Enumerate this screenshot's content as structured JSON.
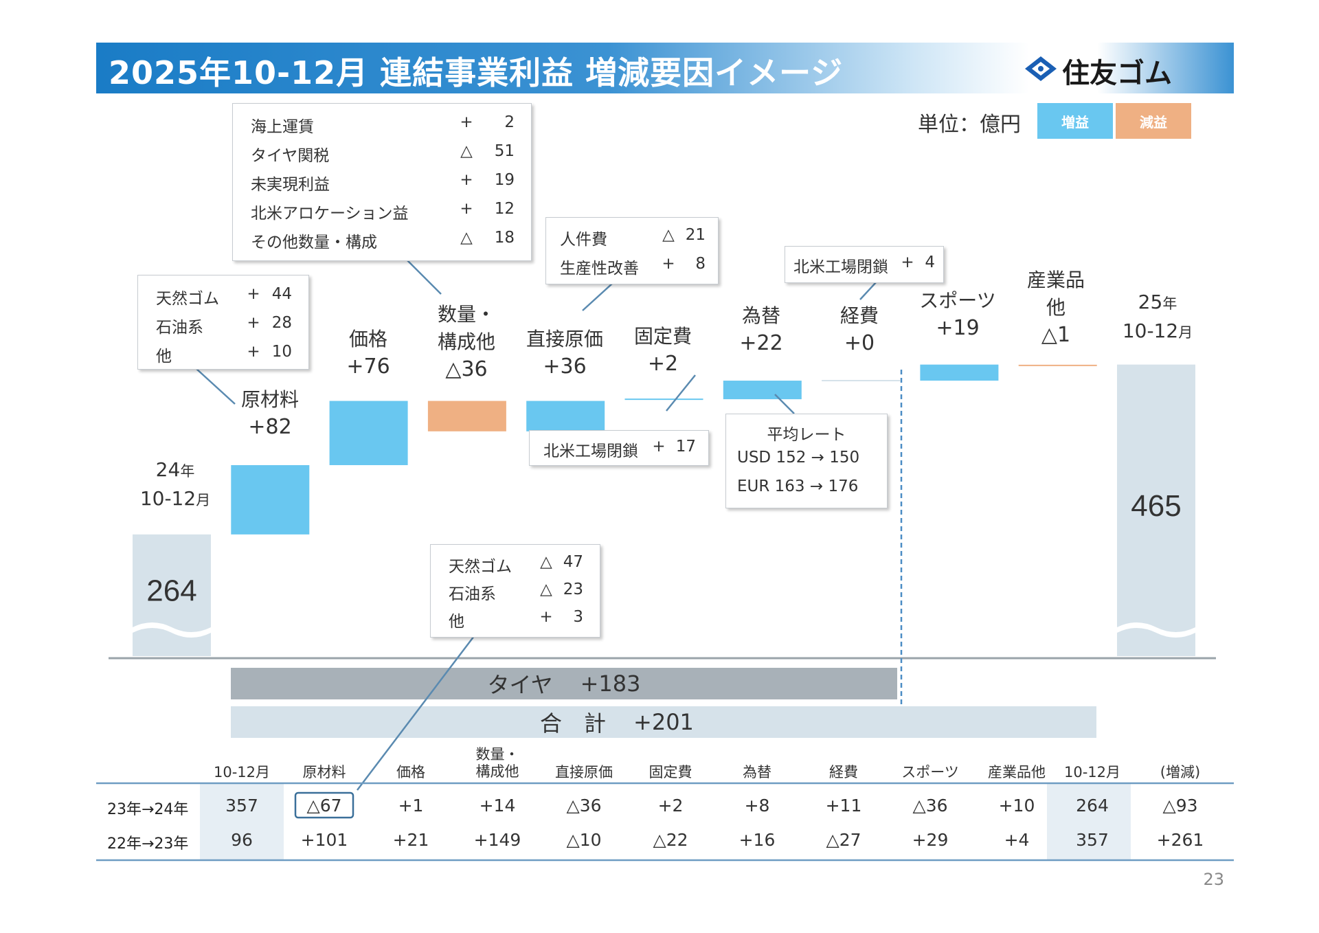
{
  "title": "2025年10-12月 連結事業利益 増減要因イメージ",
  "logo": "住友ゴム",
  "unit": "単位：億円",
  "legend": {
    "increase": "増益",
    "decrease": "減益"
  },
  "colors": {
    "increase": "#69c7f0",
    "decrease": "#efb083",
    "base": "#d6e2ea",
    "tire_band": "#a8b1b8",
    "total_band": "#d6e2ea",
    "accent": "#1a7cc6"
  },
  "chart_data": {
    "type": "bar",
    "subtype": "waterfall",
    "categories": [
      "24年10-12月",
      "原材料",
      "価格",
      "数量・構成他",
      "直接原価",
      "固定費",
      "為替",
      "経費",
      "スポーツ",
      "産業品他",
      "25年10-12月"
    ],
    "values": [
      264,
      82,
      76,
      -36,
      36,
      2,
      22,
      0,
      19,
      -1,
      465
    ],
    "bar_kind": [
      "base",
      "delta",
      "delta",
      "delta",
      "delta",
      "delta",
      "delta",
      "delta",
      "delta",
      "delta",
      "base"
    ],
    "start_label": {
      "year": "24",
      "year_suffix": "年",
      "period": "10-12",
      "period_suffix": "月",
      "value": "264"
    },
    "end_label": {
      "year": "25",
      "year_suffix": "年",
      "period": "10-12",
      "period_suffix": "月",
      "value": "465"
    },
    "bar_labels": [
      {
        "name": "原材料",
        "value": "+82"
      },
      {
        "name": "価格",
        "value": "+76"
      },
      {
        "name": "数量・",
        "name2": "構成他",
        "value": "△36"
      },
      {
        "name": "直接原価",
        "value": "+36"
      },
      {
        "name": "固定費",
        "value": "+2"
      },
      {
        "name": "為替",
        "value": "+22"
      },
      {
        "name": "経費",
        "value": "+0"
      },
      {
        "name": "スポーツ",
        "value": "+19"
      },
      {
        "name": "産業品",
        "name2": "他",
        "value": "△1"
      }
    ],
    "bands": {
      "tire": {
        "label": "タイヤ",
        "value": "+183"
      },
      "total": {
        "label": "合　計",
        "value": "+201"
      }
    },
    "annotations": {
      "raw_material_up": [
        {
          "label": "天然ゴム",
          "sign": "+",
          "value": "44"
        },
        {
          "label": "石油系",
          "sign": "+",
          "value": "28"
        },
        {
          "label": "他",
          "sign": "+",
          "value": "10"
        }
      ],
      "volume_mix": [
        {
          "label": "海上運賃",
          "sign": "+",
          "value": "2"
        },
        {
          "label": "タイヤ関税",
          "sign": "△",
          "value": "51"
        },
        {
          "label": "未実現利益",
          "sign": "+",
          "value": "19"
        },
        {
          "label": "北米アロケーション益",
          "sign": "+",
          "value": "12"
        },
        {
          "label": "その他数量・構成",
          "sign": "△",
          "value": "18"
        }
      ],
      "direct_cost": [
        {
          "label": "人件費",
          "sign": "△",
          "value": "21"
        },
        {
          "label": "生産性改善",
          "sign": "+",
          "value": "8"
        }
      ],
      "fixed_cost": {
        "label": "北米工場閉鎖",
        "sign": "+",
        "value": "17"
      },
      "expenses": {
        "label": "北米工場閉鎖",
        "sign": "+",
        "value": "4"
      },
      "fx": {
        "title": "平均レート",
        "rows": [
          {
            "ccy": "USD",
            "from": "152",
            "arrow": "→",
            "to": "150"
          },
          {
            "ccy": "EUR",
            "from": "163",
            "arrow": "→",
            "to": "176"
          }
        ]
      },
      "raw_material_prev": [
        {
          "label": "天然ゴム",
          "sign": "△",
          "value": "47"
        },
        {
          "label": "石油系",
          "sign": "△",
          "value": "23"
        },
        {
          "label": "他",
          "sign": "+",
          "value": "3"
        }
      ]
    }
  },
  "table": {
    "headers": [
      "10-12月",
      "原材料",
      "価格",
      "数量・\n構成他",
      "直接原価",
      "固定費",
      "為替",
      "経費",
      "スポーツ",
      "産業品他",
      "10-12月",
      "(増減)"
    ],
    "rows": [
      {
        "label": "23年→24年",
        "cells": [
          "357",
          "△67",
          "+1",
          "+14",
          "△36",
          "+2",
          "+8",
          "+11",
          "△36",
          "+10",
          "264",
          "△93"
        ]
      },
      {
        "label": "22年→23年",
        "cells": [
          "96",
          "+101",
          "+21",
          "+149",
          "△10",
          "△22",
          "+16",
          "△27",
          "+29",
          "+4",
          "357",
          "+261"
        ]
      }
    ]
  },
  "page_number": "23"
}
